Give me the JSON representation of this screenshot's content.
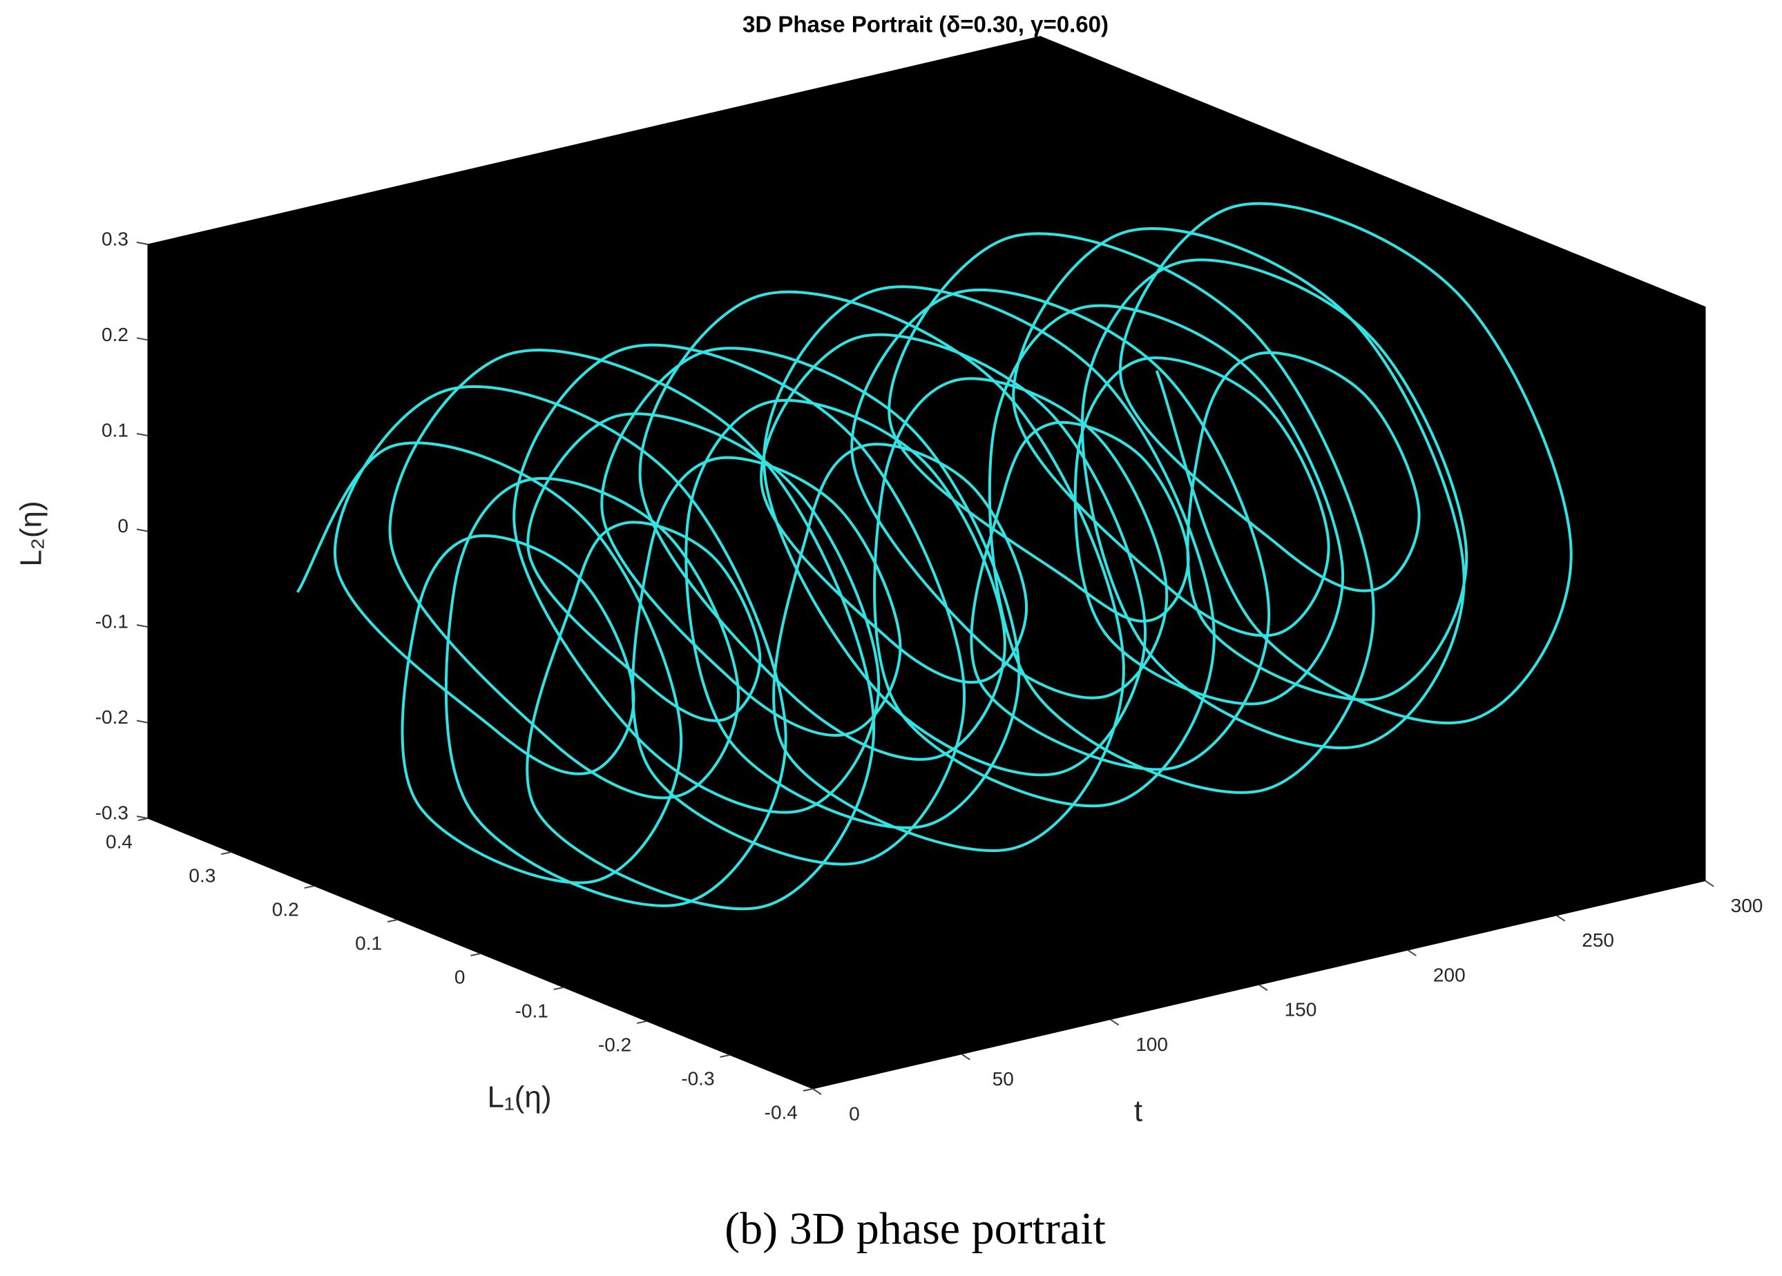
{
  "chart_data": {
    "type": "line3d",
    "title": "3D Phase Portrait (δ=0.30, γ=0.60)",
    "x_label": "t",
    "y_label": "L₁(η)",
    "z_label": "L₂(η)",
    "caption": "(b) 3D phase portrait",
    "color": "#33e3e3",
    "pane_color": "#000000",
    "grid": false,
    "xlim": [
      0,
      300
    ],
    "ylim": [
      -0.4,
      0.4
    ],
    "zlim": [
      -0.3,
      0.3
    ],
    "xticks": [
      0,
      50,
      100,
      150,
      200,
      250,
      300
    ],
    "yticks": [
      -0.4,
      -0.3,
      -0.2,
      -0.1,
      0,
      0.1,
      0.2,
      0.3,
      0.4
    ],
    "zticks": [
      -0.3,
      -0.2,
      -0.1,
      0,
      0.1,
      0.2,
      0.3
    ],
    "x": [
      0,
      2,
      4,
      6,
      8,
      10,
      12,
      14,
      16,
      18,
      20,
      22,
      24,
      26,
      28,
      30,
      32,
      34,
      36,
      38,
      40,
      42,
      44,
      46,
      48,
      50,
      52,
      54,
      56,
      58,
      60,
      62,
      64,
      66,
      68,
      70,
      72,
      74,
      76,
      78,
      80,
      82,
      84,
      86,
      88,
      90,
      92,
      94,
      96,
      98,
      100,
      102,
      104,
      106,
      108,
      110,
      112,
      114,
      116,
      118,
      120,
      122,
      124,
      126,
      128,
      130,
      132,
      134,
      136,
      138,
      140,
      142,
      144,
      146,
      148,
      150,
      152,
      154,
      156,
      158,
      160,
      162,
      164,
      166,
      168,
      170,
      172,
      174,
      176,
      178,
      180,
      182,
      184,
      186,
      188,
      190,
      192,
      194,
      196,
      198,
      200,
      202,
      204,
      206,
      208,
      210,
      212,
      214,
      216,
      218,
      220,
      222,
      224,
      226,
      228,
      230,
      232,
      234,
      236,
      238,
      240,
      242,
      244,
      246,
      248,
      250,
      252,
      254,
      256,
      258,
      260,
      262,
      264,
      266,
      268,
      270,
      272,
      274,
      276,
      278,
      280,
      282,
      284,
      286,
      288,
      290,
      292,
      294,
      296,
      298,
      300
    ],
    "y": [
      0.22,
      0.11,
      -0.11,
      -0.22,
      -0.11,
      0.11,
      0.12,
      0.06,
      -0.06,
      -0.12,
      -0.06,
      0.06,
      0.26,
      0.13,
      -0.13,
      -0.26,
      -0.13,
      0.13,
      0.16,
      0.08,
      -0.08,
      -0.16,
      -0.08,
      0.08,
      0.28,
      0.14,
      -0.14,
      -0.28,
      -0.14,
      0.14,
      0.1,
      0.05,
      -0.05,
      -0.1,
      -0.05,
      0.05,
      0.2,
      0.1,
      -0.1,
      -0.2,
      -0.1,
      0.1,
      0.26,
      0.13,
      -0.13,
      -0.26,
      -0.13,
      0.13,
      0.14,
      0.07,
      -0.07,
      -0.14,
      -0.07,
      0.07,
      0.24,
      0.12,
      -0.12,
      -0.24,
      -0.12,
      0.12,
      0.18,
      0.09,
      -0.09,
      -0.18,
      -0.09,
      0.09,
      0.28,
      0.14,
      -0.14,
      -0.28,
      -0.14,
      0.14,
      0.12,
      0.06,
      -0.06,
      -0.12,
      -0.06,
      0.06,
      0.22,
      0.11,
      -0.11,
      -0.22,
      -0.11,
      0.11,
      0.26,
      0.13,
      -0.13,
      -0.26,
      -0.13,
      0.13,
      0.16,
      0.08,
      -0.08,
      -0.16,
      -0.08,
      0.08,
      0.24,
      0.12,
      -0.12,
      -0.24,
      -0.12,
      0.12,
      0.1,
      0.05,
      -0.05,
      -0.1,
      -0.05,
      0.05,
      0.28,
      0.14,
      -0.14,
      -0.28,
      -0.14,
      0.14,
      0.2,
      0.1,
      -0.1,
      -0.2,
      -0.1,
      0.1,
      0.14,
      0.07,
      -0.07,
      -0.14,
      -0.07,
      0.07,
      0.26,
      0.13,
      -0.13,
      -0.26,
      -0.13,
      0.13,
      0.22,
      0.11,
      -0.11,
      -0.22,
      -0.11,
      0.11,
      0.12,
      0.06,
      -0.06,
      -0.12,
      -0.06,
      0.06,
      0.26,
      0.13,
      -0.13,
      -0.26,
      -0.13,
      0.13,
      0.26
    ],
    "z": [
      0,
      0.191,
      0.191,
      0,
      -0.191,
      -0.191,
      0,
      0.104,
      0.104,
      0,
      -0.104,
      -0.104,
      0,
      0.225,
      0.225,
      0,
      -0.225,
      -0.225,
      0,
      0.139,
      0.139,
      0,
      -0.139,
      -0.139,
      0,
      0.242,
      0.242,
      0,
      -0.242,
      -0.242,
      0,
      0.087,
      0.087,
      0,
      -0.087,
      -0.087,
      0,
      0.173,
      0.173,
      0,
      -0.173,
      -0.173,
      0,
      0.225,
      0.225,
      0,
      -0.225,
      -0.225,
      0,
      0.121,
      0.121,
      0,
      -0.121,
      -0.121,
      0,
      0.208,
      0.208,
      0,
      -0.208,
      -0.208,
      0,
      0.156,
      0.156,
      0,
      -0.156,
      -0.156,
      0,
      0.242,
      0.242,
      0,
      -0.242,
      -0.242,
      0,
      0.104,
      0.104,
      0,
      -0.104,
      -0.104,
      0,
      0.191,
      0.191,
      0,
      -0.191,
      -0.191,
      0,
      0.225,
      0.225,
      0,
      -0.225,
      -0.225,
      0,
      0.139,
      0.139,
      0,
      -0.139,
      -0.139,
      0,
      0.208,
      0.208,
      0,
      -0.208,
      -0.208,
      0,
      0.087,
      0.087,
      0,
      -0.087,
      -0.087,
      0,
      0.242,
      0.242,
      0,
      -0.242,
      -0.242,
      0,
      0.173,
      0.173,
      0,
      -0.173,
      -0.173,
      0,
      0.121,
      0.121,
      0,
      -0.121,
      -0.121,
      0,
      0.225,
      0.225,
      0,
      -0.225,
      -0.225,
      0,
      0.191,
      0.191,
      0,
      -0.191,
      -0.191,
      0,
      0.104,
      0.104,
      0,
      -0.104,
      -0.104,
      0,
      0.225,
      0.225,
      0,
      -0.225,
      -0.225,
      0
    ]
  }
}
